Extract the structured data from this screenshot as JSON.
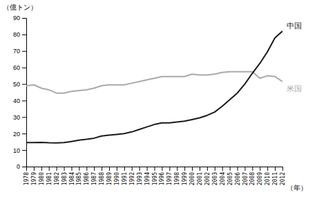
{
  "chart_data": {
    "type": "line",
    "y_label": "（億トン）",
    "x_label": "（年）",
    "x": [
      1978,
      1979,
      1980,
      1981,
      1982,
      1983,
      1984,
      1985,
      1986,
      1987,
      1988,
      1989,
      1990,
      1991,
      1992,
      1993,
      1994,
      1995,
      1996,
      1997,
      1998,
      1999,
      2000,
      2001,
      2002,
      2003,
      2004,
      2005,
      2006,
      2007,
      2008,
      2009,
      2010,
      2011,
      2012
    ],
    "series": [
      {
        "name": "米国",
        "color": "#aaaaaa",
        "values": [
          49.0,
          49.5,
          47.5,
          46.5,
          44.5,
          44.5,
          45.5,
          46.0,
          46.5,
          47.5,
          49.0,
          49.5,
          49.5,
          49.5,
          50.5,
          51.5,
          52.5,
          53.5,
          54.5,
          54.5,
          54.5,
          54.5,
          56.0,
          55.5,
          55.5,
          56.0,
          57.0,
          57.5,
          57.5,
          57.5,
          57.5,
          53.5,
          55.0,
          54.5,
          51.5
        ]
      },
      {
        "name": "中国",
        "color": "#1a1a1a",
        "values": [
          14.5,
          14.5,
          14.7,
          14.4,
          14.3,
          14.5,
          15.2,
          16.0,
          16.5,
          17.2,
          18.5,
          19.0,
          19.5,
          20.0,
          21.0,
          22.5,
          24.0,
          25.5,
          26.5,
          26.5,
          27.0,
          27.5,
          28.5,
          29.5,
          31.0,
          33.0,
          36.5,
          40.5,
          44.5,
          50.0,
          56.5,
          62.5,
          69.5,
          78.0,
          82.0
        ]
      }
    ],
    "xlim": [
      1978,
      2012
    ],
    "xticks": [
      1978,
      1979,
      1980,
      1981,
      1982,
      1983,
      1984,
      1985,
      1986,
      1987,
      1988,
      1989,
      1990,
      1991,
      1992,
      1993,
      1994,
      1995,
      1996,
      1997,
      1998,
      1999,
      2000,
      2001,
      2002,
      2003,
      2004,
      2005,
      2006,
      2007,
      2008,
      2009,
      2010,
      2011,
      2012
    ],
    "ylim": [
      0,
      90
    ],
    "yticks": [
      0,
      10,
      20,
      30,
      40,
      50,
      60,
      70,
      80,
      90
    ],
    "grid": false
  }
}
